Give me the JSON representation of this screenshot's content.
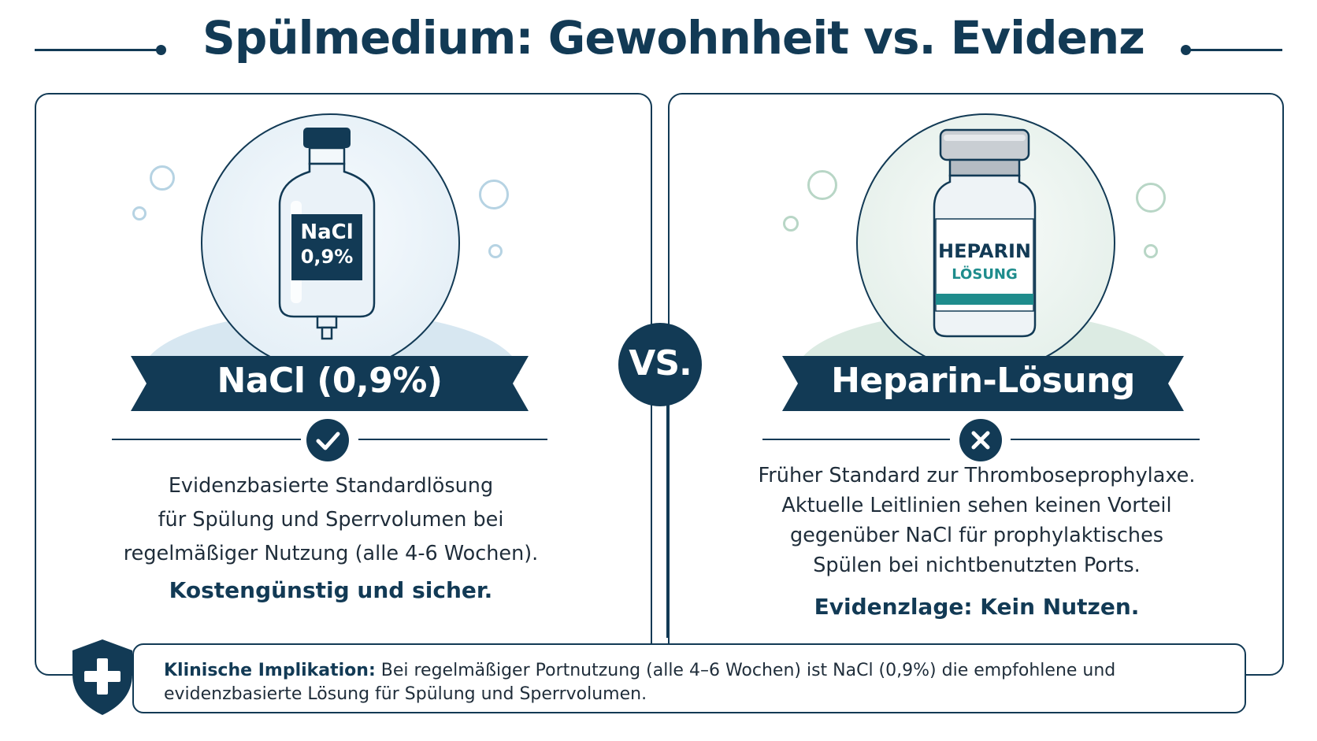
{
  "title": "Spülmedium: Gewohnheit vs. Evidenz",
  "vs_label": "VS.",
  "left": {
    "bottle_label_line1": "NaCl",
    "bottle_label_line2": "0,9%",
    "ribbon": "NaCl (0,9%)",
    "status_icon": "check-icon",
    "body_lines": [
      "Evidenzbasierte Standardlösung",
      "für Spülung und Sperrvolumen bei",
      "regelmäßiger Nutzung (alle 4-6 Wochen)."
    ],
    "emphasis": "Kostengünstig und sicher."
  },
  "right": {
    "vial_label_line1": "HEPARIN",
    "vial_label_line2": "LÖSUNG",
    "ribbon": "Heparin-Lösung",
    "status_icon": "x-icon",
    "body_lines": [
      "Früher Standard zur Thromboseprophylaxe.",
      "Aktuelle Leitlinien sehen keinen Vorteil",
      "gegenüber NaCl für prophylaktisches",
      "Spülen bei nichtbenutzten Ports."
    ],
    "emphasis": "Evidenzlage: Kein Nutzen."
  },
  "implication": {
    "label": "Klinische Implikation:",
    "text": " Bei regelmäßiger Portnutzung (alle 4–6 Wochen) ist NaCl (0,9%) die empfohlene und evidenzbasierte Lösung für Spülung und Sperrvolumen."
  },
  "colors": {
    "navy": "#123a55",
    "teal": "#1e8c8c",
    "light_blue": "#d7e7f1",
    "light_green": "#dcebe3"
  }
}
